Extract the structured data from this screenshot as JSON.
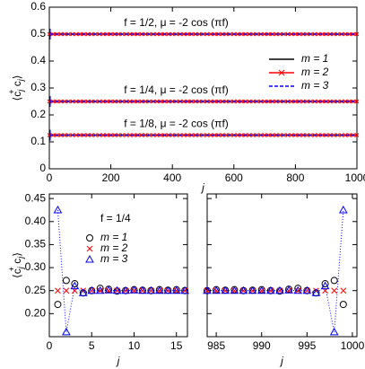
{
  "chart_data": [
    {
      "type": "level",
      "xlabel": "j",
      "ylabel": [
        "⟨c",
        "j",
        "+",
        " c",
        "j",
        "⟩"
      ],
      "xlim": [
        0,
        1000
      ],
      "xticks": [
        0,
        200,
        400,
        600,
        800,
        1000
      ],
      "ylim": [
        0,
        0.6
      ],
      "yticks": [
        0,
        0.1,
        0.2,
        0.3,
        0.4,
        0.5,
        0.6
      ],
      "annotations": [
        "f = 1/2,  μ = -2 cos (πf)",
        "f = 1/4,  μ = -2 cos (πf)",
        "f = 1/8,  μ = -2 cos (πf)"
      ],
      "legend": "right",
      "series": [
        {
          "name": "m = 1",
          "color": "#000000",
          "values": [
            0.5,
            0.25,
            0.125
          ]
        },
        {
          "name": "m = 2",
          "color": "#ff0000",
          "values": [
            0.5,
            0.25,
            0.125
          ]
        },
        {
          "name": "m = 3",
          "color": "#0000ff",
          "values": [
            0.5,
            0.25,
            0.125
          ]
        }
      ]
    },
    {
      "type": "scatter",
      "xlabel": "j",
      "ylabel": [
        "⟨c",
        "j",
        "+",
        " c",
        "j",
        "⟩"
      ],
      "annotation": "f = 1/4",
      "legend": "upper center",
      "xlim": [
        0,
        16.3
      ],
      "xticks": [
        0,
        5,
        10,
        15
      ],
      "ylim": [
        0.15,
        0.46
      ],
      "yticks": [
        {
          "value": 0.2,
          "label": "0.20"
        },
        0.25,
        {
          "value": 0.3,
          "label": "0.30"
        },
        0.35,
        {
          "value": 0.4,
          "label": "0.40"
        },
        0.45
      ],
      "x": [
        1,
        2,
        3,
        4,
        5,
        6,
        7,
        8,
        9,
        10,
        11,
        12,
        13,
        14,
        15,
        16
      ],
      "series": [
        {
          "name": "m = 1",
          "color": "#000000",
          "values": [
            0.22,
            0.272,
            0.265,
            0.245,
            0.25,
            0.255,
            0.253,
            0.249,
            0.25,
            0.252,
            0.251,
            0.25,
            0.252,
            0.251,
            0.252,
            0.25
          ]
        },
        {
          "name": "m = 2",
          "color": "#ff0000",
          "values": [
            0.25,
            0.25,
            0.25,
            0.25,
            0.25,
            0.25,
            0.25,
            0.25,
            0.25,
            0.25,
            0.25,
            0.25,
            0.25,
            0.25,
            0.25,
            0.25
          ]
        },
        {
          "name": "m = 3",
          "color": "#0000ff",
          "values": [
            0.425,
            0.16,
            0.26,
            0.245,
            0.25,
            0.25,
            0.251,
            0.25,
            0.25,
            0.251,
            0.25,
            0.25,
            0.25,
            0.25,
            0.25,
            0.25
          ]
        }
      ]
    },
    {
      "type": "scatter",
      "xlabel": "j",
      "xlim": [
        984,
        1000.5
      ],
      "xticks": [
        985,
        990,
        995,
        1000
      ],
      "ylim": [
        0.15,
        0.46
      ],
      "x": [
        984,
        985,
        986,
        987,
        988,
        989,
        990,
        991,
        992,
        993,
        994,
        995,
        996,
        997,
        998,
        999
      ],
      "series": [
        {
          "color": "#000000",
          "values": [
            0.25,
            0.252,
            0.251,
            0.252,
            0.25,
            0.251,
            0.252,
            0.25,
            0.249,
            0.253,
            0.255,
            0.25,
            0.245,
            0.265,
            0.272,
            0.22
          ]
        },
        {
          "color": "#ff0000",
          "values": [
            0.25,
            0.25,
            0.25,
            0.25,
            0.25,
            0.25,
            0.25,
            0.25,
            0.25,
            0.25,
            0.25,
            0.25,
            0.25,
            0.25,
            0.25,
            0.25
          ]
        },
        {
          "color": "#0000ff",
          "values": [
            0.25,
            0.25,
            0.25,
            0.25,
            0.25,
            0.25,
            0.25,
            0.25,
            0.25,
            0.251,
            0.25,
            0.25,
            0.245,
            0.26,
            0.16,
            0.425
          ]
        }
      ]
    }
  ]
}
